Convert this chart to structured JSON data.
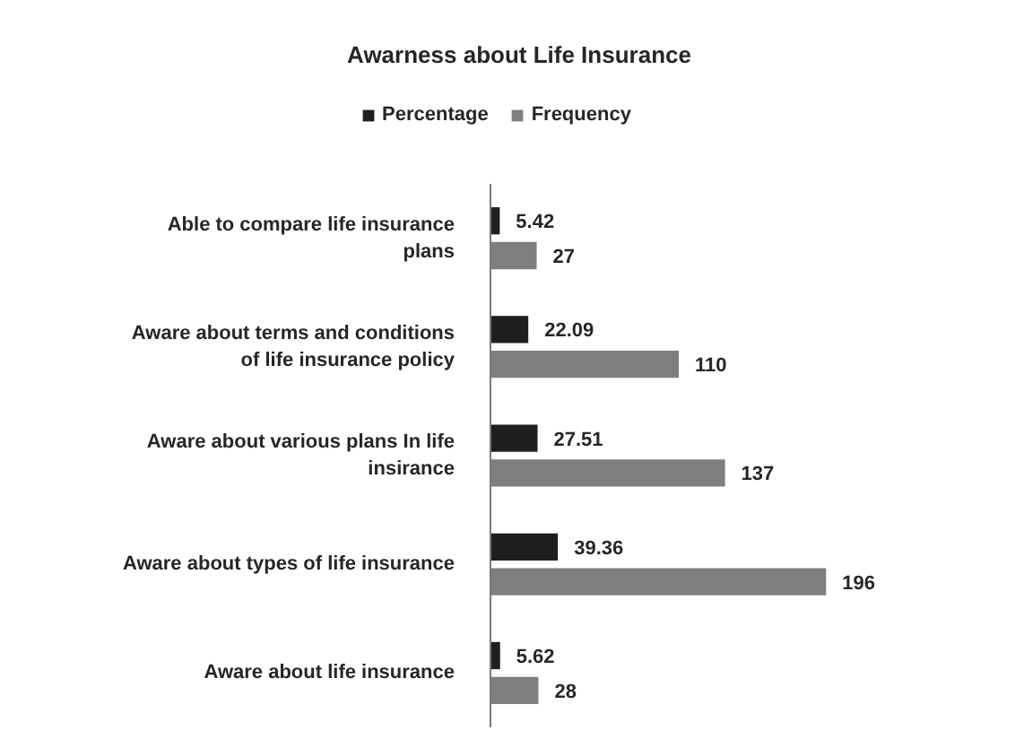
{
  "chart_data": {
    "type": "bar",
    "orientation": "horizontal",
    "title": "Awarness about Life Insurance",
    "categories": [
      "Able to compare life insurance plans",
      "Aware about terms and conditions of life insurance policy",
      "Aware about various plans In life insirance",
      "Aware about types of life insurance",
      "Aware about life insurance"
    ],
    "series": [
      {
        "name": "Percentage",
        "color": "#1f1f1f",
        "values": [
          5.42,
          22.09,
          27.51,
          39.36,
          5.62
        ]
      },
      {
        "name": "Frequency",
        "color": "#7f7f7f",
        "values": [
          27,
          110,
          137,
          196,
          28
        ]
      }
    ],
    "data_labels": true,
    "legend": "top",
    "grid": false,
    "tick_labels": "y"
  }
}
